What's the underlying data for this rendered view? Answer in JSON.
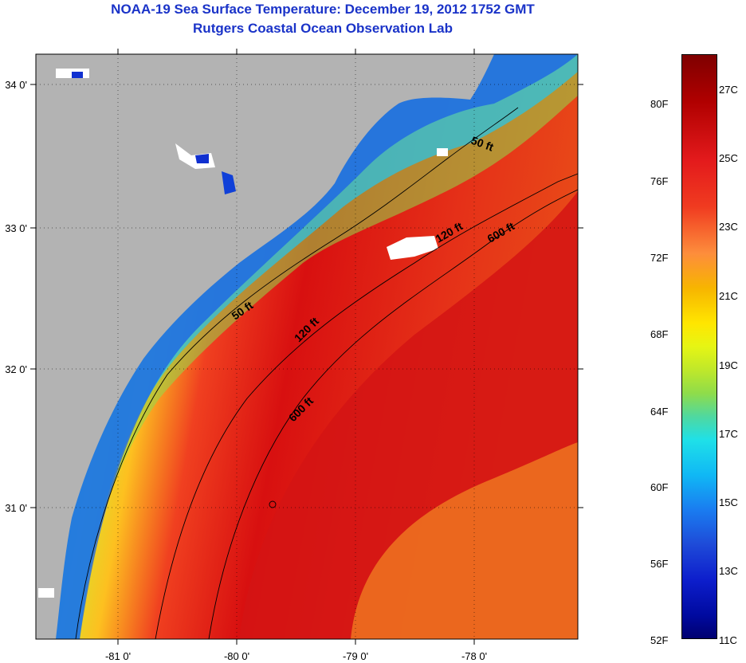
{
  "title": {
    "line1": "NOAA-19 Sea Surface Temperature:  December 19, 2012 1752 GMT",
    "line2": "Rutgers Coastal Ocean Observation Lab"
  },
  "axes": {
    "lat_labels": [
      "34 0'",
      "33 0'",
      "32 0'",
      "31 0'"
    ],
    "lon_labels": [
      "-81 0'",
      "-80 0'",
      "-79 0'",
      "-78 0'"
    ]
  },
  "contours": [
    "50 ft",
    "120 ft",
    "600 ft"
  ],
  "colorbar": {
    "fahrenheit": [
      "80F",
      "76F",
      "72F",
      "68F",
      "64F",
      "60F",
      "56F",
      "52F"
    ],
    "celsius": [
      "27C",
      "25C",
      "23C",
      "21C",
      "19C",
      "17C",
      "15C",
      "13C",
      "11C"
    ]
  },
  "colors": {
    "land": "#b3b3b3",
    "warm": "#e31a1c",
    "cool": "#1a7cf0",
    "title": "#1a33c8"
  }
}
